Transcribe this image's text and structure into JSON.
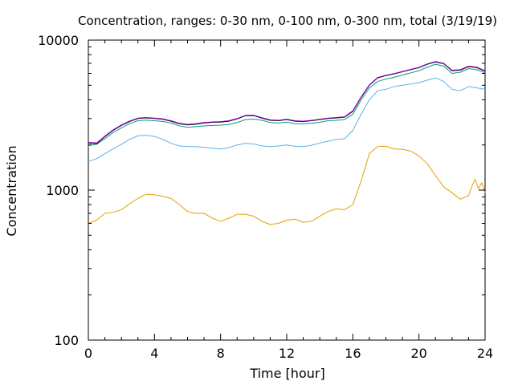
{
  "chart_data": {
    "type": "line",
    "title": "Concentration, ranges: 0-30 nm, 0-100 nm, 0-300 nm, total (3/19/19)",
    "xlabel": "Time [hour]",
    "ylabel": "Concentration",
    "xlim": [
      0,
      24
    ],
    "ylim": [
      100,
      10000
    ],
    "yscale": "log",
    "xticks": [
      0,
      4,
      8,
      12,
      16,
      20,
      24
    ],
    "xtick_labels": [
      "0",
      "4",
      "8",
      "12",
      "16",
      "20",
      "24"
    ],
    "yticks": [
      100,
      1000,
      10000
    ],
    "ytick_labels": [
      "100",
      "1000",
      "10000"
    ],
    "grid": false,
    "legend": "none",
    "series": [
      {
        "color": "#e69f00",
        "x": [
          0,
          0.5,
          1,
          1.5,
          2,
          2.5,
          3,
          3.5,
          4,
          4.5,
          5,
          5.5,
          6,
          6.5,
          7,
          7.5,
          8,
          8.5,
          9,
          9.5,
          10,
          10.5,
          11,
          11.5,
          12,
          12.5,
          13,
          13.5,
          14,
          14.5,
          15,
          15.5,
          16,
          16.5,
          17,
          17.5,
          18,
          18.5,
          19,
          19.5,
          20,
          20.5,
          21,
          21.5,
          22,
          22.5,
          23,
          23.2,
          23.4,
          23.6,
          23.8,
          24
        ],
        "values": [
          600,
          630,
          700,
          710,
          740,
          810,
          880,
          940,
          930,
          910,
          880,
          800,
          720,
          700,
          700,
          650,
          620,
          650,
          690,
          690,
          670,
          620,
          590,
          600,
          630,
          640,
          610,
          620,
          670,
          720,
          750,
          740,
          800,
          1150,
          1750,
          1950,
          1960,
          1880,
          1870,
          1820,
          1690,
          1500,
          1250,
          1050,
          960,
          870,
          920,
          1060,
          1180,
          1020,
          1120,
          960
        ]
      },
      {
        "color": "#56b4e9",
        "x": [
          0,
          0.5,
          1,
          1.5,
          2,
          2.5,
          3,
          3.5,
          4,
          4.5,
          5,
          5.5,
          6,
          6.5,
          7,
          7.5,
          8,
          8.5,
          9,
          9.5,
          10,
          10.5,
          11,
          11.5,
          12,
          12.5,
          13,
          13.5,
          14,
          14.5,
          15,
          15.5,
          16,
          16.5,
          17,
          17.5,
          18,
          18.5,
          19,
          19.5,
          20,
          20.5,
          21,
          21.5,
          22,
          22.5,
          23,
          23.5,
          24
        ],
        "values": [
          1550,
          1620,
          1750,
          1880,
          2020,
          2180,
          2300,
          2320,
          2280,
          2180,
          2050,
          1970,
          1950,
          1950,
          1930,
          1900,
          1880,
          1920,
          2000,
          2050,
          2030,
          1970,
          1950,
          1970,
          2000,
          1960,
          1950,
          1990,
          2060,
          2120,
          2180,
          2200,
          2500,
          3200,
          4000,
          4600,
          4700,
          4900,
          5000,
          5100,
          5200,
          5400,
          5600,
          5300,
          4700,
          4600,
          4900,
          4800,
          4700
        ]
      },
      {
        "color": "#009e73",
        "x": [
          0,
          0.5,
          1,
          1.5,
          2,
          2.5,
          3,
          3.5,
          4,
          4.5,
          5,
          5.5,
          6,
          6.5,
          7,
          7.5,
          8,
          8.5,
          9,
          9.5,
          10,
          10.5,
          11,
          11.5,
          12,
          12.5,
          13,
          13.5,
          14,
          14.5,
          15,
          15.5,
          16,
          16.5,
          17,
          17.5,
          18,
          18.5,
          19,
          19.5,
          20,
          20.5,
          21,
          21.5,
          22,
          22.5,
          23,
          23.5,
          24
        ],
        "values": [
          1980,
          2020,
          2200,
          2420,
          2600,
          2780,
          2900,
          2930,
          2900,
          2870,
          2800,
          2680,
          2620,
          2650,
          2680,
          2700,
          2710,
          2740,
          2820,
          2950,
          2980,
          2920,
          2820,
          2800,
          2840,
          2770,
          2760,
          2790,
          2830,
          2900,
          2920,
          2950,
          3200,
          4000,
          4800,
          5300,
          5500,
          5650,
          5850,
          6050,
          6250,
          6600,
          6900,
          6700,
          6000,
          6100,
          6450,
          6350,
          6050
        ]
      },
      {
        "color": "#000000",
        "x": [
          0,
          0.5,
          1,
          1.5,
          2,
          2.5,
          3,
          3.5,
          4,
          4.5,
          5,
          5.5,
          6,
          6.5,
          7,
          7.5,
          8,
          8.5,
          9,
          9.5,
          10,
          10.5,
          11,
          11.5,
          12,
          12.5,
          13,
          13.5,
          14,
          14.5,
          15,
          15.5,
          16,
          16.5,
          17,
          17.5,
          18,
          18.5,
          19,
          19.5,
          20,
          20.5,
          21,
          21.5,
          22,
          22.5,
          23,
          23.5,
          24
        ],
        "values": [
          2060,
          2040,
          2270,
          2500,
          2700,
          2870,
          3000,
          3030,
          3000,
          2970,
          2880,
          2770,
          2720,
          2750,
          2800,
          2830,
          2840,
          2880,
          2980,
          3130,
          3140,
          3020,
          2920,
          2900,
          2950,
          2880,
          2860,
          2900,
          2950,
          3000,
          3030,
          3060,
          3350,
          4150,
          5000,
          5600,
          5800,
          5950,
          6150,
          6350,
          6550,
          6900,
          7150,
          6950,
          6250,
          6300,
          6650,
          6550,
          6200
        ]
      },
      {
        "color": "#9400d3",
        "x": [
          0,
          0.5,
          1,
          1.5,
          2,
          2.5,
          3,
          3.5,
          4,
          4.5,
          5,
          5.5,
          6,
          6.5,
          7,
          7.5,
          8,
          8.5,
          9,
          9.5,
          10,
          10.5,
          11,
          11.5,
          12,
          12.5,
          13,
          13.5,
          14,
          14.5,
          15,
          15.5,
          16,
          16.5,
          17,
          17.5,
          18,
          18.5,
          19,
          19.5,
          20,
          20.5,
          21,
          21.5,
          22,
          22.5,
          23,
          23.5,
          24
        ],
        "values": [
          2080,
          2060,
          2290,
          2520,
          2720,
          2890,
          3020,
          3050,
          3020,
          2990,
          2900,
          2790,
          2740,
          2770,
          2820,
          2850,
          2860,
          2900,
          3000,
          3150,
          3160,
          3040,
          2940,
          2920,
          2970,
          2900,
          2880,
          2920,
          2970,
          3020,
          3050,
          3080,
          3380,
          4180,
          5030,
          5630,
          5830,
          5980,
          6180,
          6380,
          6580,
          6940,
          7200,
          7000,
          6300,
          6350,
          6700,
          6600,
          6250
        ]
      }
    ]
  }
}
